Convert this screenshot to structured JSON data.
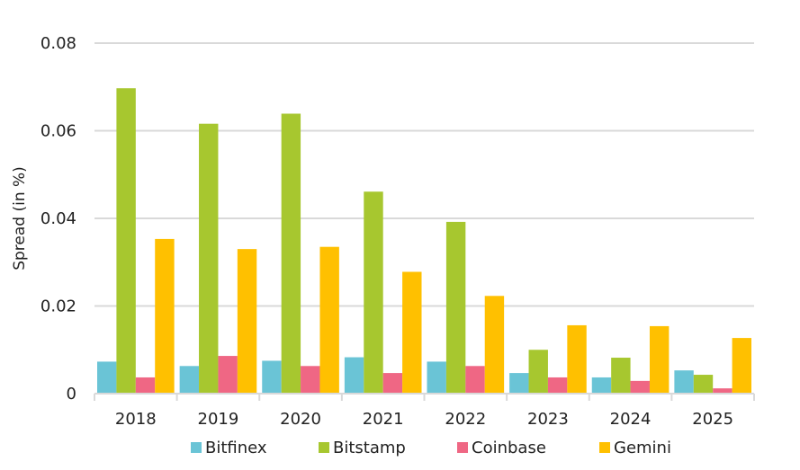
{
  "chart_data": {
    "type": "bar",
    "title": "",
    "xlabel": "",
    "ylabel": "Spread (in %)",
    "ylim": [
      0,
      0.08
    ],
    "yticks": [
      "0",
      "0.02",
      "0.04",
      "0.06",
      "0.08"
    ],
    "grid": true,
    "legend_position": "bottom",
    "categories": [
      "2018",
      "2019",
      "2020",
      "2021",
      "2022",
      "2023",
      "2024",
      "2025"
    ],
    "series": [
      {
        "name": "Bitfinex",
        "color": "#6ac4d6",
        "values": [
          0.0073,
          0.0063,
          0.0075,
          0.0083,
          0.0073,
          0.0047,
          0.0037,
          0.0053
        ]
      },
      {
        "name": "Bitstamp",
        "color": "#a7c72f",
        "values": [
          0.0697,
          0.0616,
          0.0639,
          0.0461,
          0.0392,
          0.01,
          0.0082,
          0.0043
        ]
      },
      {
        "name": "Coinbase",
        "color": "#ef6784",
        "values": [
          0.0037,
          0.0086,
          0.0063,
          0.0047,
          0.0063,
          0.0037,
          0.0029,
          0.0012
        ]
      },
      {
        "name": "Gemini",
        "color": "#ffc000",
        "values": [
          0.0353,
          0.033,
          0.0335,
          0.0278,
          0.0223,
          0.0156,
          0.0154,
          0.0127
        ]
      }
    ]
  }
}
